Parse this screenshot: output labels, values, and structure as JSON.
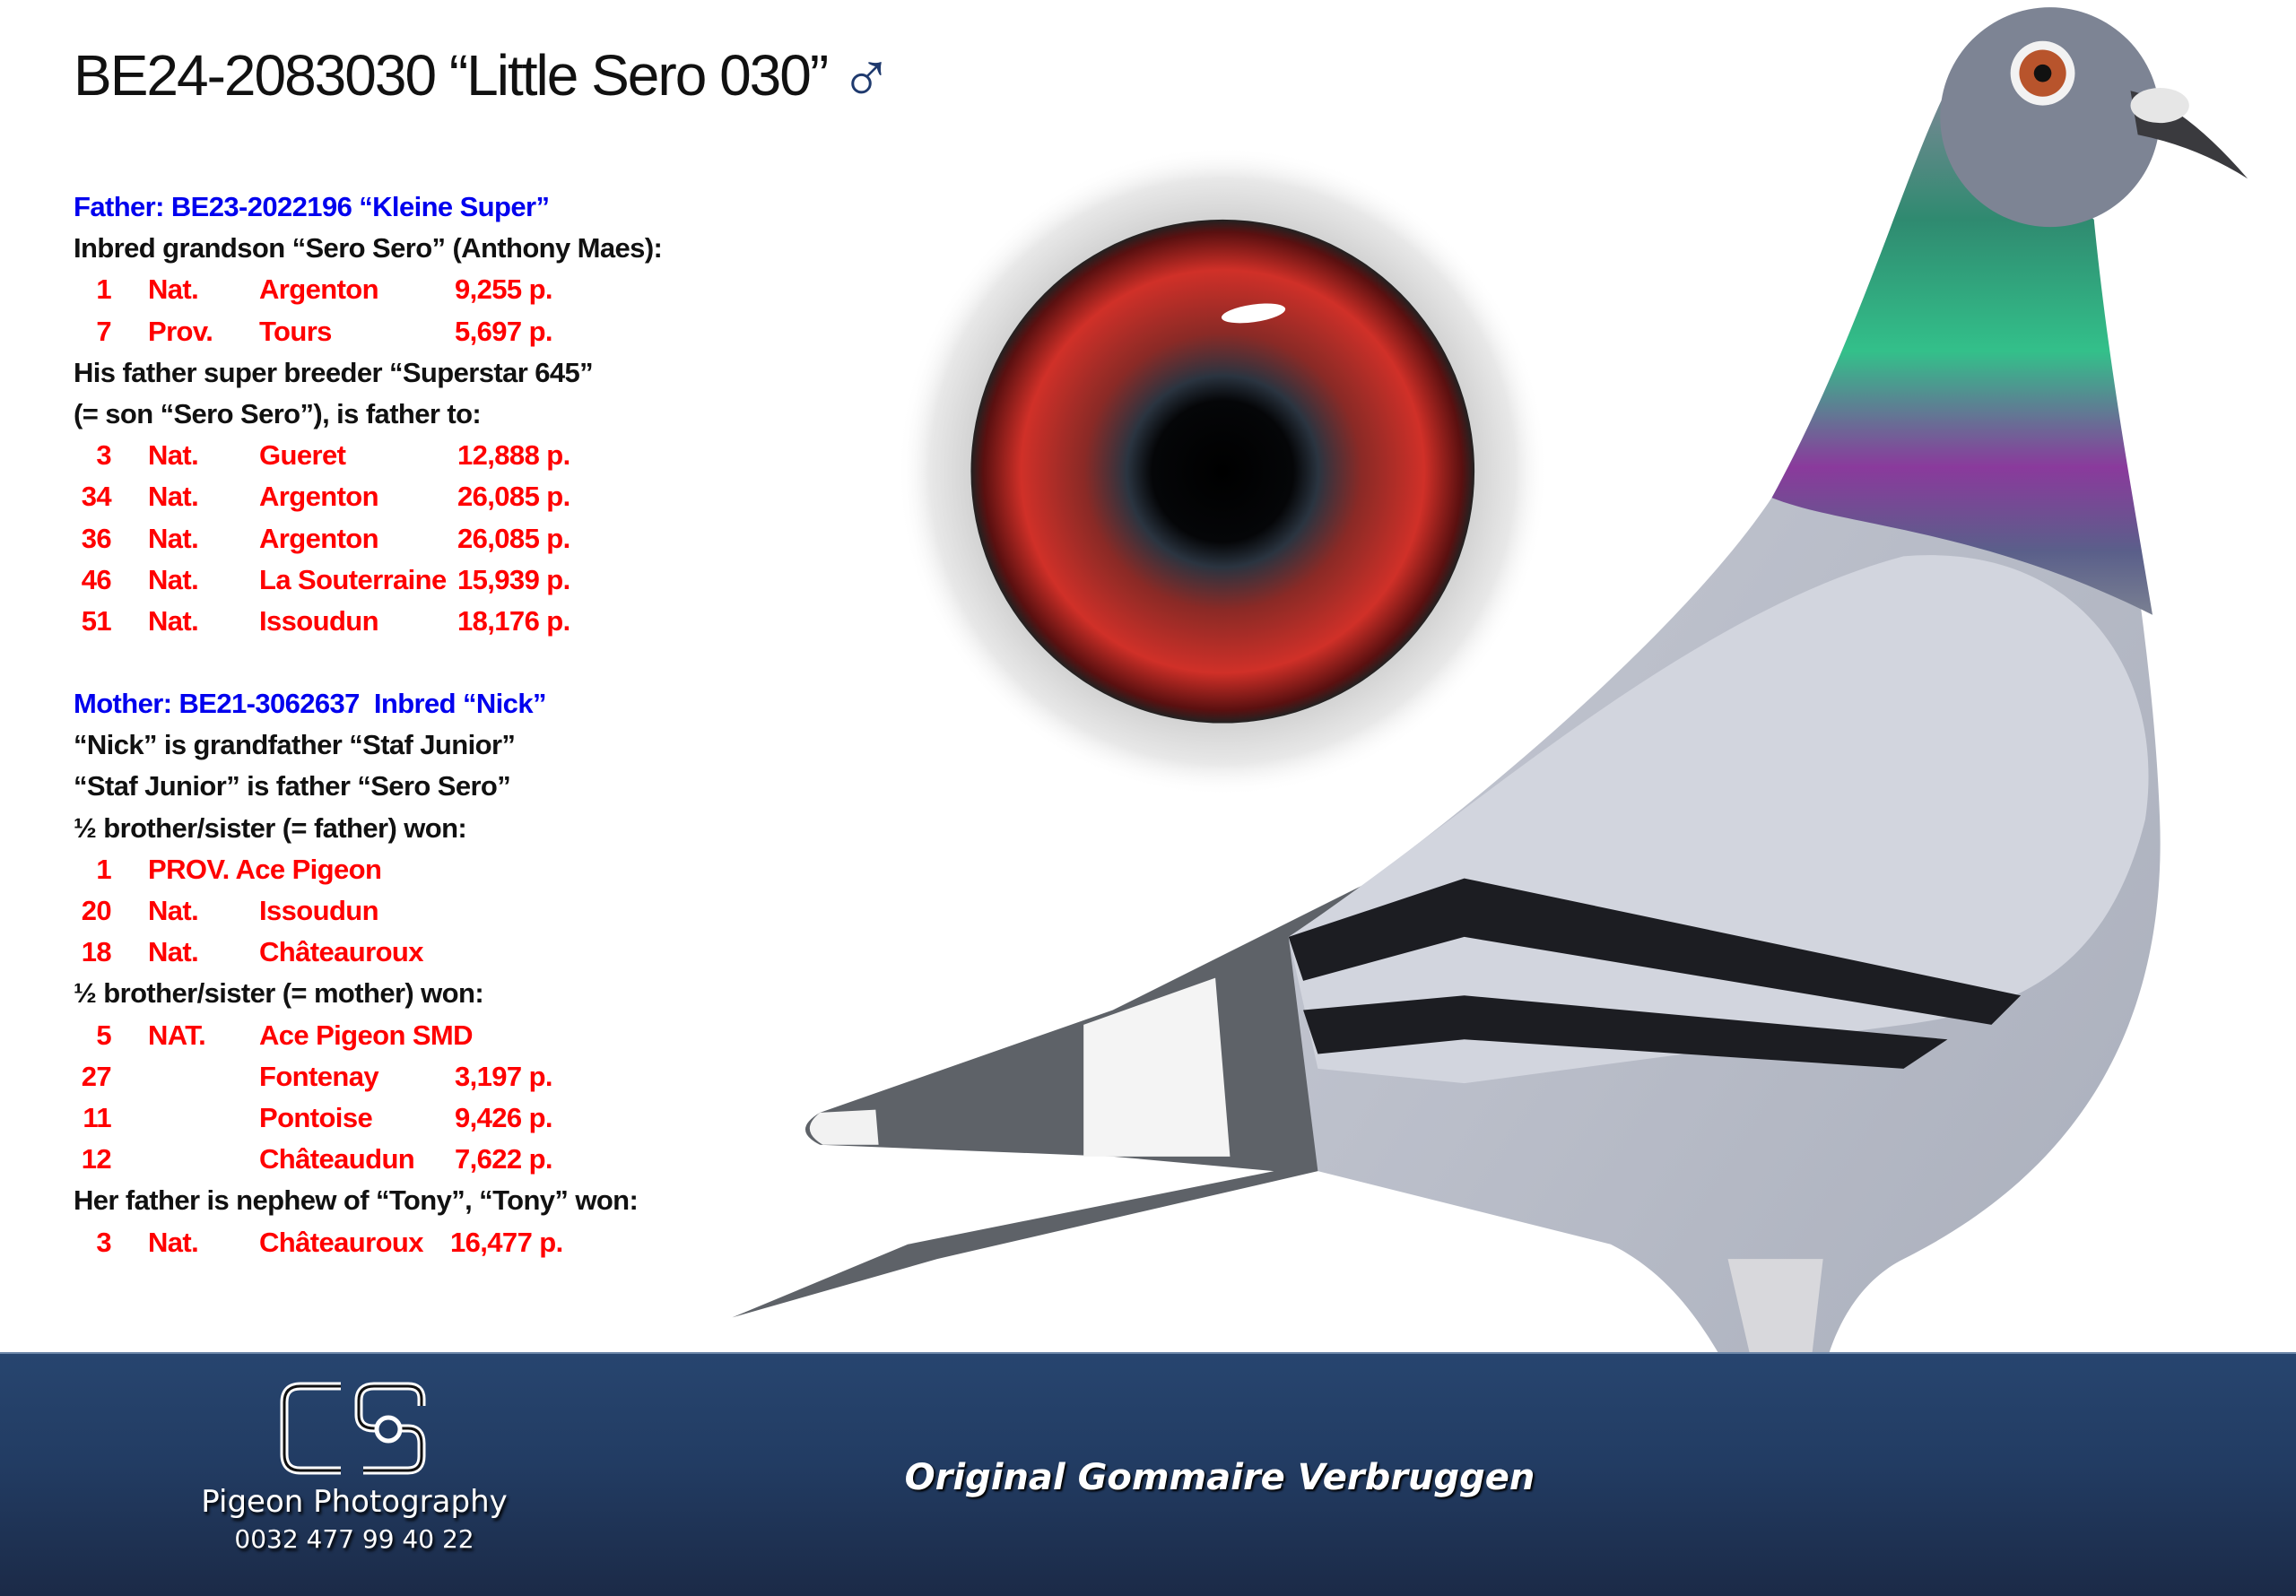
{
  "header": {
    "title": "BE24-2083030 “Little Sero 030”",
    "sex_symbol": "♂"
  },
  "father": {
    "heading": "Father: BE23-2022196 “Kleine Super”",
    "line1": "Inbred grandson “Sero Sero” (Anthony Maes):",
    "results1": [
      {
        "rank": "1",
        "level": "Nat.",
        "place": "Argenton",
        "points": "9,255 p."
      },
      {
        "rank": "7",
        "level": "Prov.",
        "place": "Tours",
        "points": "5,697 p."
      }
    ],
    "line2": "His father super breeder “Superstar 645”",
    "line3": "(= son “Sero Sero”), is father to:",
    "results2": [
      {
        "rank": "3",
        "level": "Nat.",
        "place": "Gueret",
        "points": "12,888 p."
      },
      {
        "rank": "34",
        "level": "Nat.",
        "place": "Argenton",
        "points": "26,085 p."
      },
      {
        "rank": "36",
        "level": "Nat.",
        "place": "Argenton",
        "points": "26,085 p."
      },
      {
        "rank": "46",
        "level": "Nat.",
        "place": "La Souterraine",
        "points": "15,939 p."
      },
      {
        "rank": "51",
        "level": "Nat.",
        "place": "Issoudun",
        "points": "18,176 p."
      }
    ]
  },
  "mother": {
    "heading": "Mother: BE21-3062637  Inbred “Nick”",
    "line1": "“Nick” is grandfather “Staf Junior”",
    "line2": "“Staf Junior” is father “Sero Sero”",
    "line3": "½ brother/sister (= father) won:",
    "results1": [
      {
        "rank": "1",
        "level": "PROV. Ace Pigeon",
        "place": "",
        "points": ""
      },
      {
        "rank": "20",
        "level": "Nat.",
        "place": "Issoudun",
        "points": ""
      },
      {
        "rank": "18",
        "level": "Nat.",
        "place": "Châteauroux",
        "points": ""
      }
    ],
    "line4": "½ brother/sister (= mother) won:",
    "results2": [
      {
        "rank": "5",
        "level": "NAT.",
        "place": "Ace Pigeon SMD",
        "points": ""
      },
      {
        "rank": "27",
        "level": "",
        "place": "Fontenay",
        "points": "3,197 p."
      },
      {
        "rank": "11",
        "level": "",
        "place": "Pontoise",
        "points": "9,426 p."
      },
      {
        "rank": "12",
        "level": "",
        "place": "Châteaudun",
        "points": "7,622 p."
      }
    ],
    "line5": "Her father is nephew of “Tony”, “Tony” won:",
    "results3": [
      {
        "rank": "3",
        "level": "Nat.",
        "place": "Châteauroux",
        "points": "16,477 p."
      }
    ]
  },
  "footer": {
    "logo_text": "CS",
    "brand_name": "Pigeon Photography",
    "phone": "0032 477 99 40 22",
    "credit": "Original Gommaire Verbruggen"
  },
  "colors": {
    "heading": "#0000ee",
    "results": "#ff0000",
    "footer": "#25426a",
    "sex_symbol": "#1f3a6e"
  }
}
